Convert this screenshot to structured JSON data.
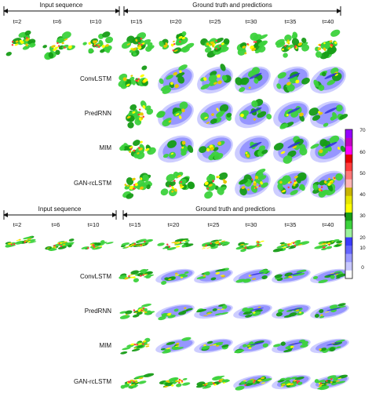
{
  "panels": [
    {
      "input_label": "Input sequence",
      "output_label": "Ground truth and predictions",
      "input_times": [
        "t=2",
        "t=6",
        "t=10"
      ],
      "output_times": [
        "t=15",
        "t=20",
        "t=25",
        "t=30",
        "t=35",
        "t=40"
      ],
      "models": [
        "ConvLSTM",
        "PredRNN",
        "MIM",
        "GAN-rcLSTM"
      ]
    },
    {
      "input_label": "Input sequence",
      "output_label": "Ground truth and predictions",
      "input_times": [
        "t=2",
        "t=6",
        "t=10"
      ],
      "output_times": [
        "t=15",
        "t=20",
        "t=25",
        "t=30",
        "t=35",
        "t=40"
      ],
      "models": [
        "ConvLSTM",
        "PredRNN",
        "MIM",
        "GAN-rcLSTM"
      ]
    }
  ],
  "colorbar": {
    "ticks": [
      "0",
      "10",
      "20",
      "30",
      "40",
      "50",
      "60",
      "70"
    ],
    "colors": [
      "#ffffff",
      "#c8c8ff",
      "#9a9aff",
      "#6464ff",
      "#3a3aff",
      "#9cf29c",
      "#3cd23c",
      "#169c16",
      "#ffff00",
      "#e6e600",
      "#c8b400",
      "#ffb4b4",
      "#ff7878",
      "#ff3c3c",
      "#e60000",
      "#ff00ff",
      "#c000c0",
      "#9600ff"
    ]
  }
}
